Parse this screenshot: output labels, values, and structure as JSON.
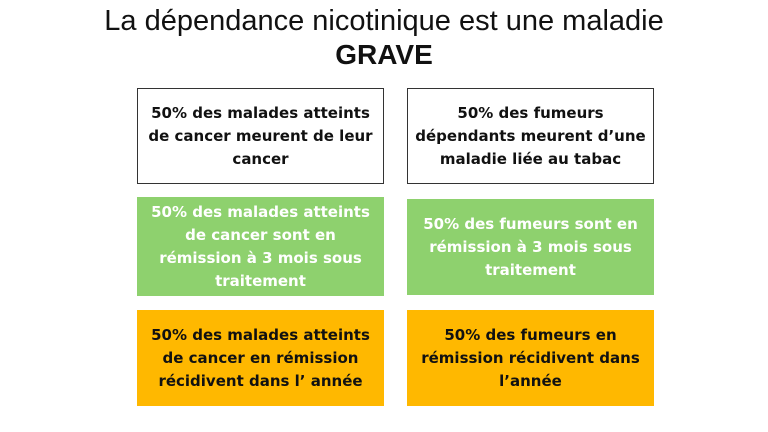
{
  "title": {
    "line1": "La dépendance nicotinique est une maladie",
    "line2": "GRAVE"
  },
  "boxes": {
    "cancer_death": "50% des malades atteints de cancer meurent de leur cancer",
    "smoker_death": "50% des fumeurs dépendants meurent d’une maladie liée au tabac",
    "cancer_remission": "50% des malades atteints de cancer sont en rémission à 3 mois sous traitement",
    "smoker_remission": "50% des fumeurs sont en rémission à 3 mois sous traitement",
    "cancer_relapse": "50% des malades atteints de cancer en rémission récidivent dans l’ année",
    "smoker_relapse": "50% des fumeurs en rémission récidivent dans l’année"
  },
  "colors": {
    "green": "#8ed16e",
    "orange": "#ffb800",
    "border": "#333333"
  }
}
